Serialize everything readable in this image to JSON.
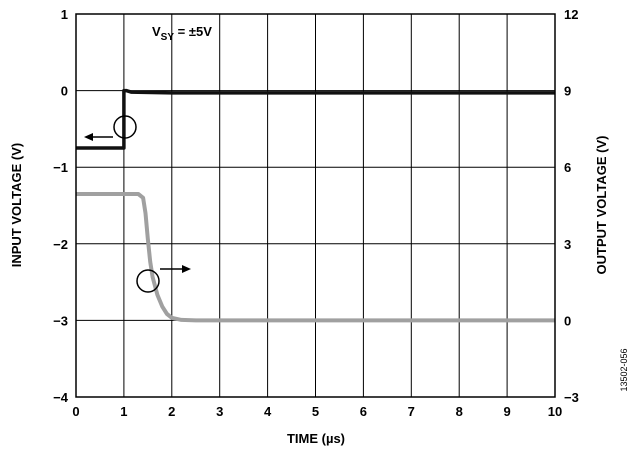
{
  "chart_data": {
    "type": "line",
    "title": "",
    "xlabel": "TIME (µs)",
    "ylabel_left": "INPUT VOLTAGE (V)",
    "ylabel_right": "OUTPUT VOLTAGE (V)",
    "xlim": [
      0,
      10
    ],
    "ylim_left": [
      -4,
      1
    ],
    "ylim_right": [
      -3,
      12
    ],
    "xticks": [
      "0",
      "1",
      "2",
      "3",
      "4",
      "5",
      "6",
      "7",
      "8",
      "9",
      "10"
    ],
    "yticks_left": [
      "1",
      "0",
      "−1",
      "−2",
      "−3",
      "−4"
    ],
    "yticks_right": [
      "12",
      "9",
      "6",
      "3",
      "0",
      "−3"
    ],
    "grid": true,
    "annotation_supply_main": "V",
    "annotation_supply_sub": "SY",
    "annotation_supply_value": " = ±5V",
    "figure_id": "13502-056",
    "series": [
      {
        "axis": "left",
        "color": "#111111",
        "x": [
          0.0,
          1.0,
          1.0,
          1.05,
          1.15,
          2.0,
          4.0,
          6.0,
          8.0,
          10.0
        ],
        "y": [
          -0.75,
          -0.75,
          0.0,
          0.0,
          -0.02,
          -0.03,
          -0.03,
          -0.03,
          -0.03,
          -0.03
        ]
      },
      {
        "axis": "right",
        "color": "#a0a0a0",
        "x": [
          0.0,
          1.0,
          1.3,
          1.4,
          1.45,
          1.5,
          1.55,
          1.6,
          1.7,
          1.8,
          1.9,
          2.0,
          2.2,
          2.5,
          4.0,
          6.0,
          8.0,
          10.0
        ],
        "y": [
          4.95,
          4.95,
          4.95,
          4.8,
          4.2,
          3.2,
          2.3,
          1.7,
          1.0,
          0.55,
          0.25,
          0.1,
          0.02,
          0.0,
          0.0,
          0.0,
          0.0,
          0.0
        ]
      }
    ]
  }
}
